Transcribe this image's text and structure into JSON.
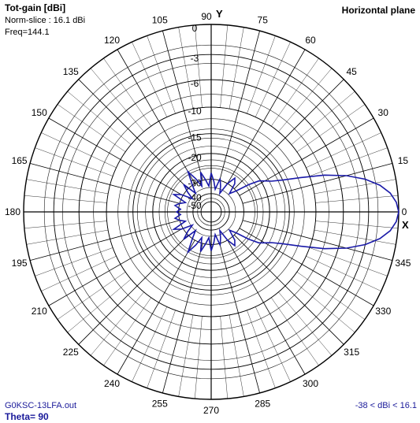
{
  "header": {
    "title": "Tot-gain [dBi]",
    "norm_slice": "Norm-slice : 16.1 dBi",
    "freq": "Freq=144.1",
    "plane": "Horizontal plane"
  },
  "footer": {
    "filename": "G0KSC-13LFA.out",
    "theta": "Theta= 90",
    "range": "-38 < dBi < 16.1"
  },
  "colors": {
    "pattern": "#1a1aa8",
    "grid": "#000000",
    "footer_text": "#1a1a9a"
  },
  "chart_data": {
    "type": "polar",
    "y_axis_label": "Y",
    "x_axis_label": "X",
    "angle_ticks": [
      "0",
      "15",
      "30",
      "45",
      "60",
      "75",
      "90",
      "105",
      "120",
      "135",
      "150",
      "165",
      "180",
      "195",
      "210",
      "225",
      "240",
      "255",
      "270",
      "285",
      "300",
      "315",
      "330",
      "345"
    ],
    "radial_ticks": [
      "0",
      "-3",
      "-6",
      "-10",
      "-15",
      "-20",
      "-30",
      "-40",
      "-50"
    ],
    "radial_tick_values": [
      0,
      -3,
      -6,
      -10,
      -15,
      -20,
      -30,
      -40,
      -50
    ],
    "r_range_dbi": [
      -38,
      16.1
    ],
    "max_gain_dbi": 16.1,
    "grid": true,
    "series": [
      {
        "angles_deg": [
          0,
          3,
          6,
          9,
          12,
          15,
          18,
          21,
          24,
          27,
          30,
          33,
          36,
          40,
          45,
          50,
          55,
          60,
          65,
          70,
          75,
          80,
          85,
          90,
          95,
          100,
          105,
          110,
          115,
          120,
          125,
          130,
          135,
          140,
          145,
          150,
          155,
          160,
          165,
          170,
          175,
          180
        ],
        "gain_db": [
          0,
          -0.2,
          -0.7,
          -1.6,
          -3.0,
          -5.0,
          -7.8,
          -11.5,
          -15.0,
          -17.5,
          -19.0,
          -20.5,
          -24,
          -30,
          -34,
          -28,
          -26,
          -30,
          -38,
          -33,
          -29,
          -36,
          -31,
          -27,
          -34,
          -30,
          -26,
          -33,
          -28,
          -24,
          -30,
          -35,
          -27,
          -31,
          -36,
          -29,
          -26,
          -33,
          -30,
          -28,
          -31,
          -29
        ]
      }
    ]
  }
}
